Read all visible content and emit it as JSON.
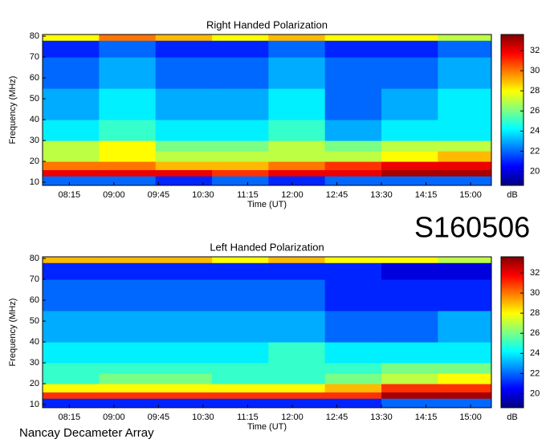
{
  "annotations": {
    "id": "S160506",
    "source": "Nancay Decameter Array"
  },
  "chart_data": [
    {
      "type": "heatmap",
      "title": "Right Handed Polarization",
      "xlabel": "Time (UT)",
      "ylabel": "Frequency (MHz)",
      "colorbar_label": "dB",
      "xbins": [
        468,
        525,
        582,
        639,
        696,
        753,
        810,
        867,
        921
      ],
      "ybins": [
        8.5,
        13,
        16,
        20,
        25,
        30,
        40,
        55,
        70,
        78,
        80.8
      ],
      "z": [
        [
          22,
          22,
          21,
          22,
          21,
          22,
          22,
          22
        ],
        [
          32,
          32,
          32,
          31,
          32,
          32,
          33,
          33
        ],
        [
          30,
          30,
          29,
          29,
          30,
          31,
          32,
          32
        ],
        [
          27,
          28,
          27,
          27,
          27,
          27,
          28,
          29
        ],
        [
          27,
          28,
          26,
          26,
          27,
          26,
          27,
          27
        ],
        [
          24,
          25,
          24,
          24,
          25,
          23,
          24,
          24
        ],
        [
          23,
          24,
          23,
          23,
          24,
          22,
          23,
          24
        ],
        [
          22,
          23,
          22,
          22,
          23,
          22,
          22,
          23
        ],
        [
          21,
          22,
          21,
          21,
          22,
          21,
          21,
          22
        ],
        [
          28,
          30,
          29,
          28,
          29,
          28,
          28,
          27
        ]
      ],
      "xlim": [
        468,
        921
      ],
      "ylim": [
        8.5,
        80.8
      ],
      "zlim": [
        18.6,
        33.6
      ],
      "xticks": [
        {
          "value": 495,
          "label": "08:15"
        },
        {
          "value": 540,
          "label": "09:00"
        },
        {
          "value": 585,
          "label": "09:45"
        },
        {
          "value": 630,
          "label": "10:30"
        },
        {
          "value": 675,
          "label": "11:15"
        },
        {
          "value": 720,
          "label": "12:00"
        },
        {
          "value": 765,
          "label": "12:45"
        },
        {
          "value": 810,
          "label": "13:30"
        },
        {
          "value": 855,
          "label": "14:15"
        },
        {
          "value": 900,
          "label": "15:00"
        }
      ],
      "yticks": [
        10,
        20,
        30,
        40,
        50,
        60,
        70,
        80
      ],
      "zticks": [
        20,
        22,
        24,
        26,
        28,
        30,
        32
      ]
    },
    {
      "type": "heatmap",
      "title": "Left Handed Polarization",
      "xlabel": "Time (UT)",
      "ylabel": "Frequency (MHz)",
      "colorbar_label": "dB",
      "xbins": [
        468,
        525,
        582,
        639,
        696,
        753,
        810,
        867,
        921
      ],
      "ybins": [
        8.5,
        13,
        16,
        20,
        25,
        30,
        40,
        55,
        70,
        78,
        80.8
      ],
      "z": [
        [
          21,
          21,
          21,
          21,
          21,
          21,
          22,
          22
        ],
        [
          31,
          31,
          31,
          31,
          31,
          31,
          33,
          33
        ],
        [
          28,
          28,
          28,
          28,
          28,
          29,
          31,
          31
        ],
        [
          25,
          26,
          26,
          25,
          25,
          26,
          27,
          28
        ],
        [
          25,
          25,
          25,
          25,
          25,
          25,
          26,
          26
        ],
        [
          24,
          24,
          24,
          24,
          25,
          24,
          24,
          24
        ],
        [
          23,
          23,
          23,
          23,
          23,
          22,
          22,
          23
        ],
        [
          22,
          22,
          22,
          22,
          22,
          21,
          21,
          21
        ],
        [
          21,
          21,
          21,
          21,
          21,
          21,
          20,
          20
        ],
        [
          29,
          29,
          29,
          28,
          29,
          28,
          28,
          27
        ]
      ],
      "xlim": [
        468,
        921
      ],
      "ylim": [
        8.5,
        80.8
      ],
      "zlim": [
        18.6,
        33.6
      ],
      "xticks": [
        {
          "value": 495,
          "label": "08:15"
        },
        {
          "value": 540,
          "label": "09:00"
        },
        {
          "value": 585,
          "label": "09:45"
        },
        {
          "value": 630,
          "label": "10:30"
        },
        {
          "value": 675,
          "label": "11:15"
        },
        {
          "value": 720,
          "label": "12:00"
        },
        {
          "value": 765,
          "label": "12:45"
        },
        {
          "value": 810,
          "label": "13:30"
        },
        {
          "value": 855,
          "label": "14:15"
        },
        {
          "value": 900,
          "label": "15:00"
        }
      ],
      "yticks": [
        10,
        20,
        30,
        40,
        50,
        60,
        70,
        80
      ],
      "zticks": [
        20,
        22,
        24,
        26,
        28,
        30,
        32
      ]
    }
  ]
}
